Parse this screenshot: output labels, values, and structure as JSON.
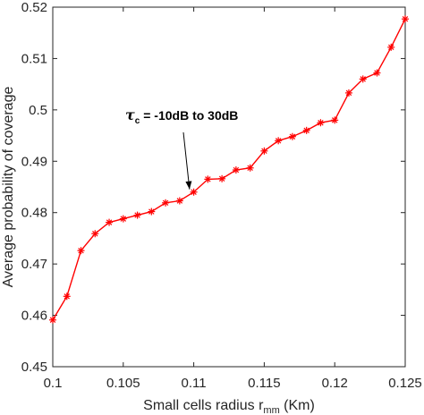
{
  "chart_data": {
    "type": "line",
    "xlabel": "Small cells radius r",
    "xlabel_sub": "mm",
    "xlabel_unit": " (Km)",
    "ylabel": "Average probability of coverage",
    "xlim": [
      0.1,
      0.125
    ],
    "ylim": [
      0.45,
      0.52
    ],
    "xticks": [
      0.1,
      0.105,
      0.11,
      0.115,
      0.12,
      0.125
    ],
    "xtick_labels": [
      "0.1",
      "0.105",
      "0.11",
      "0.115",
      "0.12",
      "0.125"
    ],
    "yticks": [
      0.45,
      0.46,
      0.47,
      0.48,
      0.49,
      0.5,
      0.51,
      0.52
    ],
    "ytick_labels": [
      "0.45",
      "0.46",
      "0.47",
      "0.48",
      "0.49",
      "0.5",
      "0.51",
      "0.52"
    ],
    "grid": false,
    "series": [
      {
        "color": "#ff0000",
        "marker": "asterisk",
        "x": [
          0.1,
          0.101,
          0.102,
          0.103,
          0.104,
          0.105,
          0.106,
          0.107,
          0.108,
          0.109,
          0.11,
          0.111,
          0.112,
          0.113,
          0.114,
          0.115,
          0.116,
          0.117,
          0.118,
          0.119,
          0.12,
          0.121,
          0.122,
          0.123,
          0.124,
          0.125
        ],
        "y": [
          0.4591,
          0.4637,
          0.4726,
          0.4759,
          0.4781,
          0.4788,
          0.4795,
          0.4802,
          0.4819,
          0.4823,
          0.484,
          0.4865,
          0.4866,
          0.4883,
          0.4887,
          0.492,
          0.494,
          0.4948,
          0.496,
          0.4975,
          0.498,
          0.5033,
          0.506,
          0.5072,
          0.5122,
          0.5177
        ]
      }
    ],
    "annotation": {
      "symbol": "τ",
      "sub": "c",
      "text": " = -10dB to 30dB",
      "arrow_to_x": 0.1097
    }
  }
}
